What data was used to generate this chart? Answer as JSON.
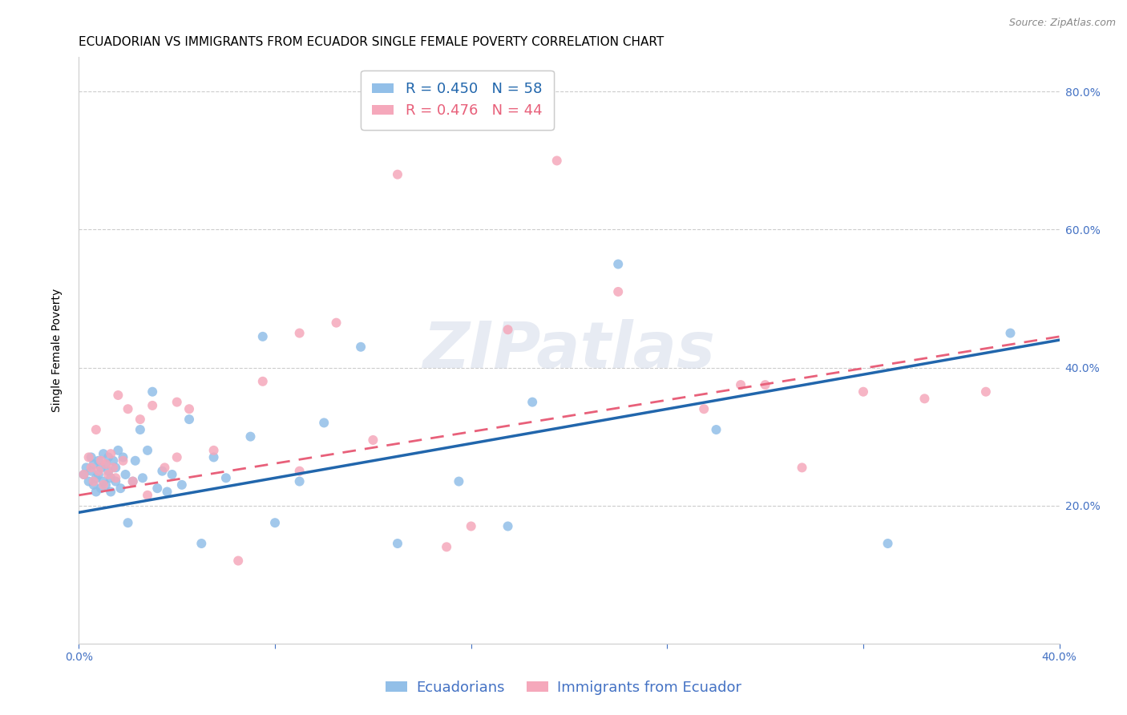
{
  "title": "ECUADORIAN VS IMMIGRANTS FROM ECUADOR SINGLE FEMALE POVERTY CORRELATION CHART",
  "source": "Source: ZipAtlas.com",
  "ylabel": "Single Female Poverty",
  "xlim": [
    0.0,
    0.4
  ],
  "ylim": [
    0.0,
    0.85
  ],
  "yticks": [
    0.2,
    0.4,
    0.6,
    0.8
  ],
  "xticks": [
    0.0,
    0.08,
    0.16,
    0.24,
    0.32,
    0.4
  ],
  "xtick_labels": [
    "0.0%",
    "",
    "",
    "",
    "",
    "40.0%"
  ],
  "ytick_labels": [
    "20.0%",
    "40.0%",
    "60.0%",
    "80.0%"
  ],
  "blue_color": "#92BFE8",
  "pink_color": "#F5A8BB",
  "blue_line_color": "#2166AC",
  "pink_line_color": "#E8607A",
  "R_blue": 0.45,
  "N_blue": 58,
  "R_pink": 0.476,
  "N_pink": 44,
  "watermark": "ZIPatlas",
  "legend_label_blue": "Ecuadorians",
  "legend_label_pink": "Immigrants from Ecuador",
  "blue_line_x0": 0.0,
  "blue_line_y0": 0.19,
  "blue_line_x1": 0.4,
  "blue_line_y1": 0.44,
  "pink_line_x0": 0.0,
  "pink_line_y0": 0.215,
  "pink_line_x1": 0.4,
  "pink_line_y1": 0.445,
  "blue_scatter_x": [
    0.002,
    0.003,
    0.004,
    0.005,
    0.005,
    0.006,
    0.006,
    0.007,
    0.007,
    0.008,
    0.008,
    0.009,
    0.009,
    0.01,
    0.01,
    0.011,
    0.011,
    0.012,
    0.012,
    0.013,
    0.013,
    0.014,
    0.015,
    0.015,
    0.016,
    0.017,
    0.018,
    0.019,
    0.02,
    0.022,
    0.023,
    0.025,
    0.026,
    0.028,
    0.03,
    0.032,
    0.034,
    0.036,
    0.038,
    0.042,
    0.045,
    0.05,
    0.055,
    0.06,
    0.07,
    0.075,
    0.08,
    0.09,
    0.1,
    0.115,
    0.13,
    0.155,
    0.175,
    0.185,
    0.22,
    0.26,
    0.33,
    0.38
  ],
  "blue_scatter_y": [
    0.245,
    0.255,
    0.235,
    0.25,
    0.27,
    0.23,
    0.26,
    0.24,
    0.22,
    0.265,
    0.245,
    0.225,
    0.255,
    0.235,
    0.275,
    0.26,
    0.23,
    0.25,
    0.27,
    0.24,
    0.22,
    0.265,
    0.235,
    0.255,
    0.28,
    0.225,
    0.27,
    0.245,
    0.175,
    0.235,
    0.265,
    0.31,
    0.24,
    0.28,
    0.365,
    0.225,
    0.25,
    0.22,
    0.245,
    0.23,
    0.325,
    0.145,
    0.27,
    0.24,
    0.3,
    0.445,
    0.175,
    0.235,
    0.32,
    0.43,
    0.145,
    0.235,
    0.17,
    0.35,
    0.55,
    0.31,
    0.145,
    0.45
  ],
  "pink_scatter_x": [
    0.002,
    0.004,
    0.005,
    0.006,
    0.007,
    0.008,
    0.009,
    0.01,
    0.011,
    0.012,
    0.013,
    0.014,
    0.015,
    0.016,
    0.018,
    0.02,
    0.022,
    0.025,
    0.028,
    0.03,
    0.035,
    0.04,
    0.045,
    0.055,
    0.065,
    0.075,
    0.09,
    0.105,
    0.12,
    0.15,
    0.16,
    0.195,
    0.22,
    0.255,
    0.27,
    0.295,
    0.32,
    0.345,
    0.37,
    0.175,
    0.13,
    0.28,
    0.09,
    0.04
  ],
  "pink_scatter_y": [
    0.245,
    0.27,
    0.255,
    0.235,
    0.31,
    0.25,
    0.265,
    0.23,
    0.26,
    0.245,
    0.275,
    0.255,
    0.24,
    0.36,
    0.265,
    0.34,
    0.235,
    0.325,
    0.215,
    0.345,
    0.255,
    0.27,
    0.34,
    0.28,
    0.12,
    0.38,
    0.25,
    0.465,
    0.295,
    0.14,
    0.17,
    0.7,
    0.51,
    0.34,
    0.375,
    0.255,
    0.365,
    0.355,
    0.365,
    0.455,
    0.68,
    0.375,
    0.45,
    0.35
  ],
  "blue_marker_size": 75,
  "pink_marker_size": 75,
  "title_fontsize": 11,
  "axis_label_fontsize": 10,
  "tick_fontsize": 10,
  "legend_fontsize": 13,
  "background_color": "#ffffff",
  "grid_color": "#cccccc",
  "axis_color": "#4472C4"
}
